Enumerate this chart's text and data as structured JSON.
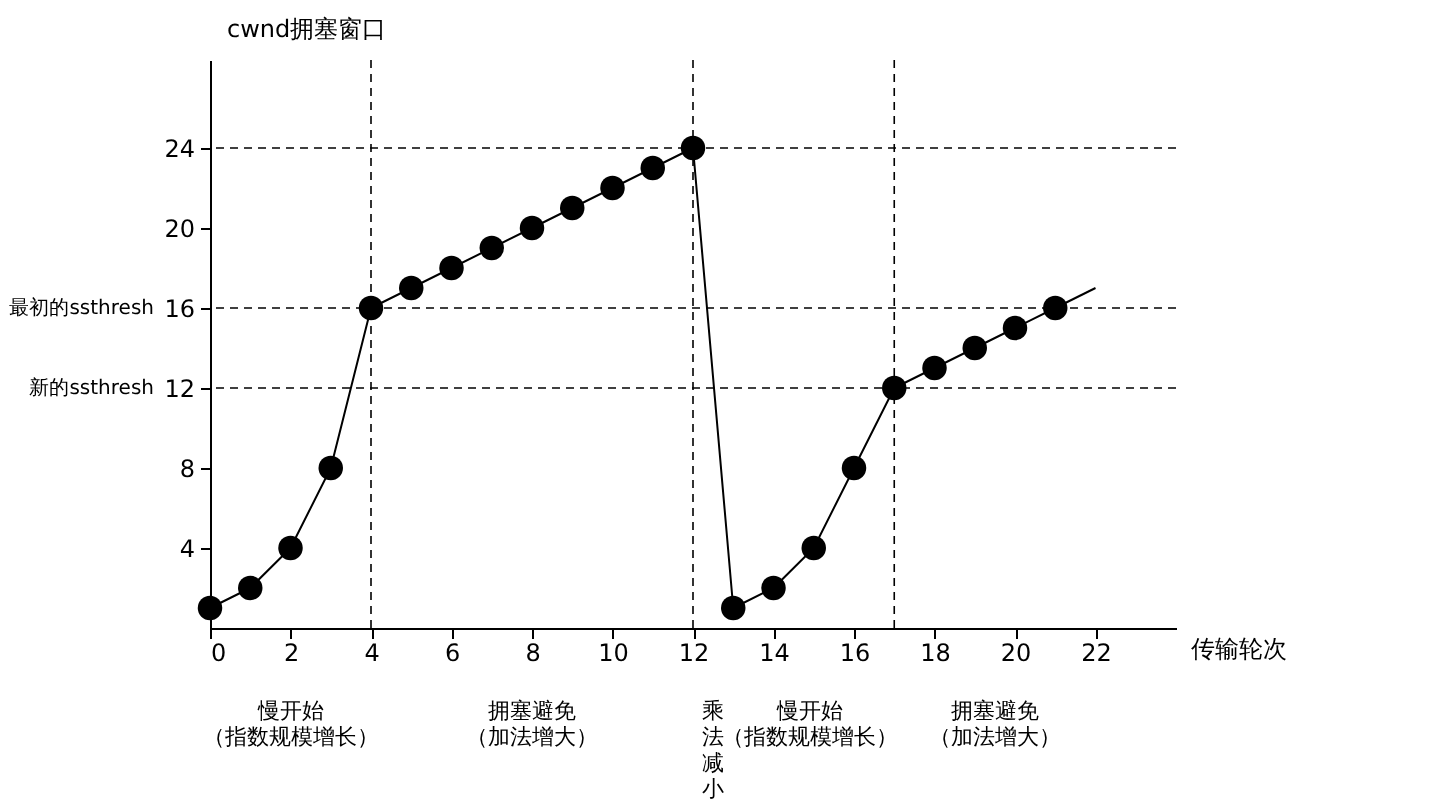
{
  "chart_data": {
    "type": "line",
    "xlabel": "传输轮次",
    "ylabel": "cwnd拥塞窗口",
    "xlim": [
      0,
      24
    ],
    "ylim": [
      0,
      28.4
    ],
    "xticks": [
      0,
      2,
      4,
      6,
      8,
      10,
      12,
      14,
      16,
      18,
      20,
      22
    ],
    "yticks": [
      4,
      8,
      12,
      16,
      20,
      24
    ],
    "grid": false,
    "marker": "circle",
    "line_style": "solid",
    "series": [
      {
        "color": "#000000",
        "x": [
          0,
          1,
          2,
          3,
          4,
          5,
          6,
          7,
          8,
          9,
          10,
          11,
          12,
          13,
          14,
          15,
          16,
          17,
          18,
          19,
          20,
          21
        ],
        "values": [
          1,
          2,
          4,
          8,
          16,
          17,
          18,
          19,
          20,
          21,
          22,
          23,
          24,
          1,
          2,
          4,
          8,
          12,
          13,
          14,
          15,
          16
        ]
      },
      {
        "color": "#000000",
        "marker": "none",
        "x": [
          21,
          22
        ],
        "values": [
          16,
          17
        ]
      }
    ],
    "ref_lines": [
      {
        "axis": "y",
        "value": 24,
        "label": null,
        "line_style": "dashed"
      },
      {
        "axis": "y",
        "value": 16,
        "label": "最初的ssthresh",
        "line_style": "dashed"
      },
      {
        "axis": "y",
        "value": 12,
        "label": "新的ssthresh",
        "line_style": "dashed"
      },
      {
        "axis": "x",
        "value": 4,
        "label": null,
        "line_style": "dashed"
      },
      {
        "axis": "x",
        "value": 12,
        "label": null,
        "line_style": "dashed"
      },
      {
        "axis": "x",
        "value": 17,
        "label": null,
        "line_style": "dashed"
      }
    ],
    "annotations": [
      "慢开始（指数规模增长）",
      "拥塞避免（加法增大）",
      "乘法减小",
      "慢开始（指数规模增长）",
      "拥塞避免（加法增大）"
    ]
  }
}
